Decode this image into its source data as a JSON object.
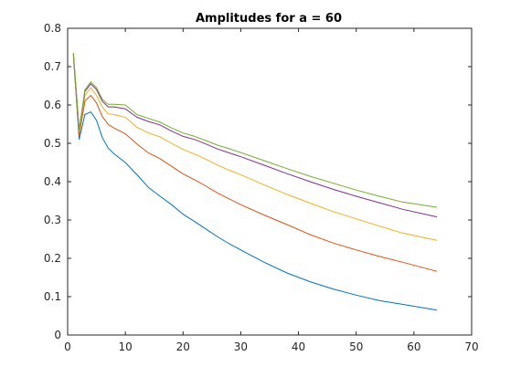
{
  "chart_data": {
    "type": "line",
    "title": "Amplitudes for a = 60",
    "xlabel": "",
    "ylabel": "",
    "xlim": [
      0,
      70
    ],
    "ylim": [
      0,
      0.8
    ],
    "xticks": [
      0,
      10,
      20,
      30,
      40,
      50,
      60,
      70
    ],
    "yticks": [
      0,
      0.1,
      0.2,
      0.3,
      0.4,
      0.5,
      0.6,
      0.7,
      0.8
    ],
    "xtick_labels": [
      "0",
      "10",
      "20",
      "30",
      "40",
      "50",
      "60",
      "70"
    ],
    "ytick_labels": [
      "0",
      "0.1",
      "0.2",
      "0.3",
      "0.4",
      "0.5",
      "0.6",
      "0.7",
      "0.8"
    ],
    "grid": false,
    "x": [
      1,
      2,
      3,
      4,
      5,
      6,
      7,
      8,
      10,
      12,
      14,
      16,
      18,
      20,
      22,
      24,
      26,
      28,
      30,
      34,
      38,
      42,
      46,
      50,
      54,
      58,
      64
    ],
    "series": [
      {
        "color": "#0072bd",
        "values": [
          0.73,
          0.51,
          0.575,
          0.582,
          0.56,
          0.515,
          0.488,
          0.473,
          0.45,
          0.418,
          0.385,
          0.362,
          0.34,
          0.315,
          0.296,
          0.276,
          0.256,
          0.238,
          0.222,
          0.19,
          0.162,
          0.139,
          0.12,
          0.104,
          0.09,
          0.08,
          0.065
        ]
      },
      {
        "color": "#d95319",
        "values": [
          0.73,
          0.52,
          0.61,
          0.625,
          0.605,
          0.57,
          0.55,
          0.54,
          0.525,
          0.498,
          0.475,
          0.46,
          0.44,
          0.42,
          0.405,
          0.388,
          0.37,
          0.355,
          0.34,
          0.313,
          0.288,
          0.262,
          0.24,
          0.222,
          0.205,
          0.19,
          0.166
        ]
      },
      {
        "color": "#edb120",
        "values": [
          0.735,
          0.53,
          0.625,
          0.645,
          0.625,
          0.595,
          0.577,
          0.575,
          0.568,
          0.542,
          0.527,
          0.517,
          0.5,
          0.484,
          0.472,
          0.458,
          0.443,
          0.43,
          0.418,
          0.392,
          0.367,
          0.344,
          0.322,
          0.303,
          0.284,
          0.266,
          0.247
        ]
      },
      {
        "color": "#7e2f8e",
        "values": [
          0.735,
          0.535,
          0.635,
          0.655,
          0.64,
          0.61,
          0.595,
          0.595,
          0.59,
          0.568,
          0.557,
          0.548,
          0.532,
          0.518,
          0.51,
          0.498,
          0.485,
          0.475,
          0.465,
          0.443,
          0.421,
          0.4,
          0.38,
          0.362,
          0.345,
          0.328,
          0.308
        ]
      },
      {
        "color": "#77ac30",
        "values": [
          0.735,
          0.535,
          0.64,
          0.66,
          0.645,
          0.615,
          0.602,
          0.602,
          0.6,
          0.575,
          0.565,
          0.555,
          0.54,
          0.527,
          0.518,
          0.507,
          0.495,
          0.486,
          0.476,
          0.455,
          0.434,
          0.414,
          0.396,
          0.378,
          0.362,
          0.347,
          0.333
        ]
      }
    ]
  }
}
